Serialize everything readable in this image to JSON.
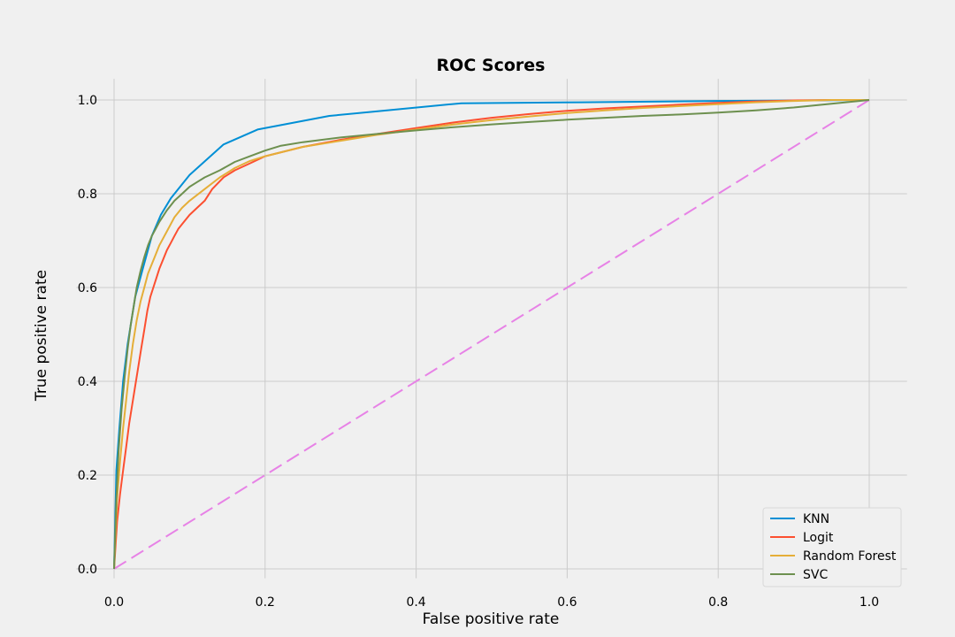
{
  "chart_data": {
    "type": "line",
    "title": "ROC Scores",
    "xlabel": "False positive rate",
    "ylabel": "True positive rate",
    "xlim": [
      -0.05,
      1.05
    ],
    "ylim": [
      -0.02,
      1.045
    ],
    "xticks": [
      0.0,
      0.2,
      0.4,
      0.6,
      0.8,
      1.0
    ],
    "xtick_labels": [
      "0.0",
      "0.2",
      "0.4",
      "0.6",
      "0.8",
      "1.0"
    ],
    "yticks": [
      0.0,
      0.2,
      0.4,
      0.6,
      0.8,
      1.0
    ],
    "ytick_labels": [
      "0.0",
      "0.2",
      "0.4",
      "0.6",
      "0.8",
      "1.0"
    ],
    "grid": true,
    "legend_position": "lower-right",
    "series": [
      {
        "name": "KNN",
        "color": "#008fd5",
        "x": [
          0.0,
          0.003,
          0.007,
          0.012,
          0.018,
          0.028,
          0.038,
          0.05,
          0.062,
          0.075,
          0.1,
          0.145,
          0.19,
          0.285,
          0.46,
          0.62,
          0.8,
          1.0
        ],
        "y": [
          0.0,
          0.21,
          0.3,
          0.4,
          0.48,
          0.58,
          0.64,
          0.71,
          0.755,
          0.79,
          0.84,
          0.905,
          0.937,
          0.966,
          0.993,
          0.995,
          0.998,
          1.0
        ]
      },
      {
        "name": "Logit",
        "color": "#fc4f30",
        "x": [
          0.0,
          0.004,
          0.008,
          0.012,
          0.016,
          0.02,
          0.024,
          0.028,
          0.032,
          0.036,
          0.04,
          0.044,
          0.048,
          0.052,
          0.056,
          0.06,
          0.065,
          0.07,
          0.075,
          0.08,
          0.085,
          0.09,
          0.1,
          0.11,
          0.12,
          0.13,
          0.145,
          0.16,
          0.18,
          0.2,
          0.25,
          0.3,
          0.35,
          0.4,
          0.45,
          0.5,
          0.55,
          0.6,
          0.65,
          0.7,
          0.75,
          0.8,
          0.85,
          0.9,
          0.95,
          1.0
        ],
        "y": [
          0.0,
          0.1,
          0.16,
          0.21,
          0.26,
          0.31,
          0.35,
          0.39,
          0.43,
          0.47,
          0.51,
          0.55,
          0.58,
          0.6,
          0.62,
          0.64,
          0.66,
          0.68,
          0.695,
          0.71,
          0.725,
          0.735,
          0.755,
          0.77,
          0.785,
          0.81,
          0.835,
          0.85,
          0.865,
          0.88,
          0.9,
          0.915,
          0.928,
          0.94,
          0.952,
          0.962,
          0.97,
          0.977,
          0.982,
          0.986,
          0.99,
          0.994,
          0.997,
          0.999,
          1.0,
          1.0
        ]
      },
      {
        "name": "Random Forest",
        "color": "#e5ae38",
        "x": [
          0.0,
          0.004,
          0.008,
          0.012,
          0.016,
          0.02,
          0.025,
          0.03,
          0.035,
          0.04,
          0.045,
          0.05,
          0.055,
          0.06,
          0.07,
          0.08,
          0.09,
          0.1,
          0.12,
          0.14,
          0.16,
          0.18,
          0.2,
          0.25,
          0.3,
          0.35,
          0.4,
          0.45,
          0.5,
          0.55,
          0.6,
          0.65,
          0.7,
          0.75,
          0.8,
          0.85,
          0.9,
          0.95,
          1.0
        ],
        "y": [
          0.0,
          0.15,
          0.23,
          0.3,
          0.36,
          0.42,
          0.48,
          0.53,
          0.57,
          0.6,
          0.63,
          0.65,
          0.67,
          0.69,
          0.72,
          0.75,
          0.77,
          0.785,
          0.81,
          0.835,
          0.855,
          0.87,
          0.88,
          0.9,
          0.913,
          0.926,
          0.937,
          0.948,
          0.957,
          0.965,
          0.972,
          0.978,
          0.983,
          0.987,
          0.991,
          0.995,
          0.998,
          1.0,
          1.0
        ]
      },
      {
        "name": "SVC",
        "color": "#6d904f",
        "x": [
          0.0,
          0.003,
          0.006,
          0.01,
          0.014,
          0.018,
          0.022,
          0.026,
          0.03,
          0.035,
          0.04,
          0.045,
          0.05,
          0.055,
          0.06,
          0.07,
          0.08,
          0.09,
          0.1,
          0.11,
          0.12,
          0.14,
          0.16,
          0.18,
          0.2,
          0.22,
          0.25,
          0.3,
          0.35,
          0.4,
          0.45,
          0.5,
          0.55,
          0.6,
          0.65,
          0.7,
          0.75,
          0.8,
          0.85,
          0.9,
          0.95,
          1.0
        ],
        "y": [
          0.0,
          0.15,
          0.25,
          0.34,
          0.41,
          0.47,
          0.52,
          0.56,
          0.6,
          0.635,
          0.665,
          0.69,
          0.71,
          0.725,
          0.74,
          0.765,
          0.785,
          0.8,
          0.815,
          0.825,
          0.835,
          0.85,
          0.868,
          0.88,
          0.892,
          0.902,
          0.91,
          0.92,
          0.928,
          0.935,
          0.942,
          0.948,
          0.953,
          0.958,
          0.962,
          0.966,
          0.969,
          0.973,
          0.978,
          0.984,
          0.992,
          1.0
        ]
      },
      {
        "name": "",
        "color": "#e782e6",
        "dashed": true,
        "x": [
          0.0,
          1.0
        ],
        "y": [
          0.0,
          1.0
        ]
      }
    ]
  }
}
